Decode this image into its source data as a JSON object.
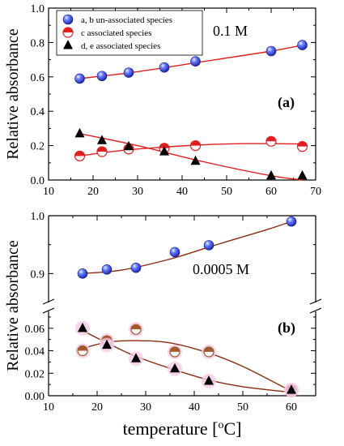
{
  "figure": {
    "ylabel": "Relative absorbance",
    "xlabel": "temperature [",
    "xlabel_sup": "o",
    "xlabel_tail": "C]"
  },
  "chart_data": [
    {
      "type": "scatter",
      "panel_label": "(a)",
      "annotation": "0.1 M",
      "xlim": [
        10,
        70
      ],
      "ylim": [
        0.0,
        1.0
      ],
      "xticks": [
        10,
        20,
        30,
        40,
        50,
        60,
        70
      ],
      "yticks": [
        0.0,
        0.2,
        0.4,
        0.6,
        0.8,
        1.0
      ],
      "xtick_labels": [
        "10",
        "20",
        "30",
        "40",
        "50",
        "60",
        "70"
      ],
      "ytick_labels": [
        "0.0",
        "0.2",
        "0.4",
        "0.6",
        "0.8",
        "1.0"
      ],
      "legend_position": "top-left",
      "series": [
        {
          "name": "a, b  un-associated species",
          "marker": "blue-sphere",
          "color": "#2e3fd6",
          "x": [
            17,
            22,
            28,
            36,
            43,
            60,
            67
          ],
          "y": [
            0.59,
            0.605,
            0.625,
            0.655,
            0.69,
            0.75,
            0.785
          ],
          "fit": {
            "color": "#e02020",
            "x": [
              17,
              30,
              45,
              60,
              67
            ],
            "y": [
              0.59,
              0.63,
              0.69,
              0.75,
              0.785
            ]
          }
        },
        {
          "name": "c     associated species",
          "marker": "half-red-circle",
          "color": "#e02020",
          "x": [
            17,
            22,
            28,
            36,
            43,
            60,
            67
          ],
          "y": [
            0.14,
            0.165,
            0.18,
            0.185,
            0.2,
            0.225,
            0.195
          ],
          "fit": {
            "color": "#e02020",
            "x": [
              17,
              25,
              35,
              45,
              55,
              67
            ],
            "y": [
              0.14,
              0.168,
              0.19,
              0.205,
              0.212,
              0.21
            ]
          }
        },
        {
          "name": "d, e  associated species",
          "marker": "black-triangle",
          "color": "#000000",
          "x": [
            17,
            22,
            28,
            36,
            43,
            60,
            67
          ],
          "y": [
            0.27,
            0.23,
            0.195,
            0.165,
            0.11,
            0.025,
            0.025
          ],
          "fit": {
            "color": "#e02020",
            "x": [
              17,
              30,
              45,
              60,
              67
            ],
            "y": [
              0.27,
              0.2,
              0.105,
              0.025,
              0.0
            ]
          }
        }
      ]
    },
    {
      "type": "scatter",
      "panel_label": "(b)",
      "annotation": "0.0005 M",
      "xlim": [
        10,
        65
      ],
      "axis_break": true,
      "upper_ylim": [
        0.85,
        1.0
      ],
      "lower_ylim": [
        0.0,
        0.075
      ],
      "xticks": [
        10,
        20,
        30,
        40,
        50,
        60
      ],
      "xtick_labels": [
        "10",
        "20",
        "30",
        "40",
        "50",
        "60"
      ],
      "upper_yticks": [
        0.9,
        1.0
      ],
      "upper_ytick_labels": [
        "0.9",
        "1.0"
      ],
      "lower_yticks": [
        0.0,
        0.02,
        0.04,
        0.06
      ],
      "lower_ytick_labels": [
        "0.00",
        "0.02",
        "0.04",
        "0.06"
      ],
      "series": [
        {
          "marker": "blue-sphere",
          "color": "#2e3fd6",
          "x": [
            17,
            22,
            28,
            36,
            43,
            60
          ],
          "y": [
            0.9,
            0.907,
            0.91,
            0.937,
            0.949,
            0.99
          ],
          "fit": {
            "color": "#8b2c12",
            "x": [
              17,
              25,
              35,
              45,
              55,
              60
            ],
            "y": [
              0.9,
              0.906,
              0.925,
              0.951,
              0.976,
              0.99
            ]
          }
        },
        {
          "marker": "half-brown-circle",
          "color": "#a05a2c",
          "x": [
            17,
            22,
            28,
            36,
            43,
            60
          ],
          "y": [
            0.04,
            0.049,
            0.059,
            0.039,
            0.039,
            0.005
          ],
          "fit": {
            "color": "#8b2c12",
            "x": [
              17,
              22,
              28,
              35,
              43,
              50,
              60
            ],
            "y": [
              0.042,
              0.0475,
              0.049,
              0.047,
              0.038,
              0.026,
              0.004
            ]
          }
        },
        {
          "marker": "olive-triangle",
          "color": "#000000",
          "x": [
            17,
            22,
            28,
            36,
            43,
            60
          ],
          "y": [
            0.06,
            0.045,
            0.033,
            0.024,
            0.013,
            0.005
          ],
          "fit": {
            "color": "#8b2c12",
            "x": [
              17,
              22,
              28,
              36,
              43,
              50,
              60
            ],
            "y": [
              0.058,
              0.047,
              0.035,
              0.023,
              0.014,
              0.008,
              0.003
            ]
          }
        }
      ]
    }
  ]
}
